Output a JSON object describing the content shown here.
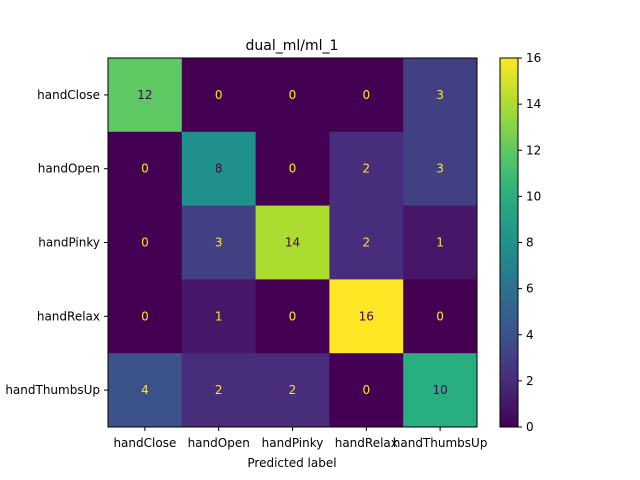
{
  "chart_data": {
    "type": "heatmap",
    "title": "dual_ml/ml_1",
    "xlabel": "Predicted label",
    "ylabel": "",
    "row_labels": [
      "handClose",
      "handOpen",
      "handPinky",
      "handRelax",
      "handThumbsUp"
    ],
    "col_labels": [
      "handClose",
      "handOpen",
      "handPinky",
      "handRelax",
      "handThumbsUp"
    ],
    "values": [
      [
        12,
        0,
        0,
        0,
        3
      ],
      [
        0,
        8,
        0,
        2,
        3
      ],
      [
        0,
        3,
        14,
        2,
        1
      ],
      [
        0,
        1,
        0,
        16,
        0
      ],
      [
        4,
        2,
        2,
        0,
        10
      ]
    ],
    "colormap": "viridis",
    "vmin": 0,
    "vmax": 16,
    "colorbar_ticks": [
      0,
      2,
      4,
      6,
      8,
      10,
      12,
      14,
      16
    ],
    "label_color_dark": "#fde725",
    "label_color_light": "#440154"
  }
}
